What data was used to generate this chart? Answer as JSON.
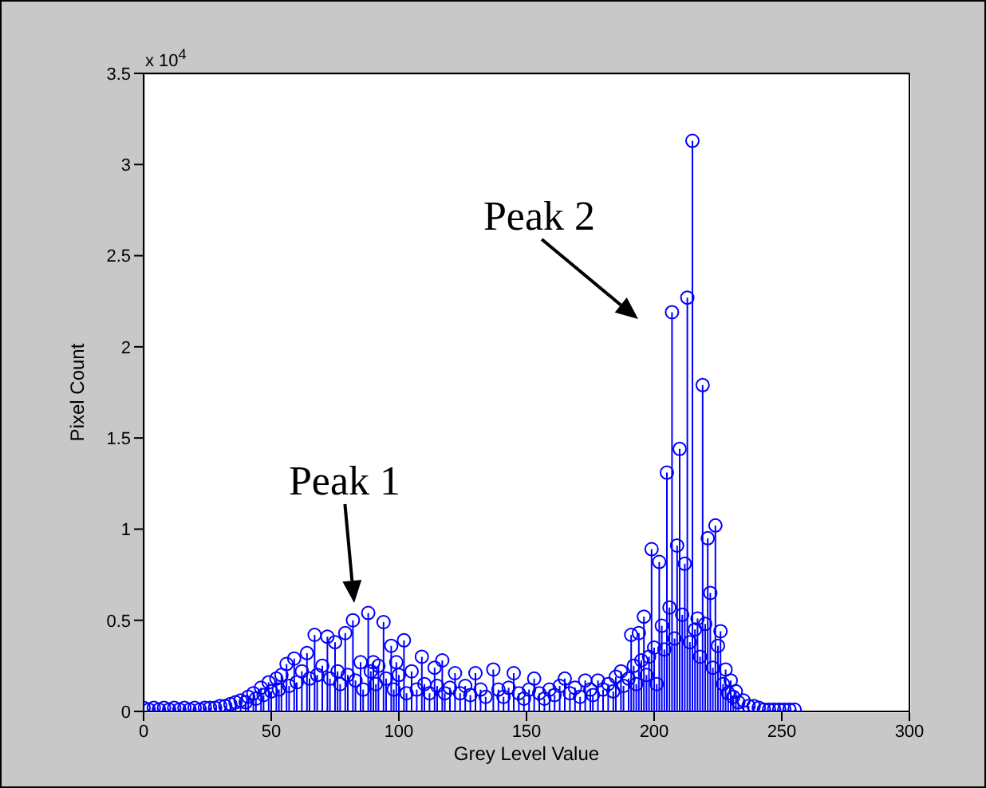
{
  "chart_data": {
    "type": "lollipop",
    "xlabel": "Grey Level Value",
    "ylabel": "Pixel Count",
    "subtitle": "x 10$^{4}$",
    "color": "#0000ff",
    "marker": "circle",
    "xlim": [
      0,
      300
    ],
    "xticks": [
      0,
      50,
      100,
      150,
      200,
      250,
      300
    ],
    "ylim": [
      0,
      3.5
    ],
    "yticks": [
      0,
      0.5,
      1,
      1.5,
      2,
      2.5,
      3,
      3.5
    ],
    "x": [
      0,
      2,
      4,
      6,
      8,
      10,
      12,
      14,
      16,
      18,
      20,
      22,
      24,
      26,
      28,
      30,
      32,
      34,
      36,
      38,
      40,
      41,
      43,
      44,
      46,
      47,
      49,
      50,
      52,
      53,
      54,
      56,
      57,
      59,
      60,
      62,
      64,
      65,
      67,
      68,
      70,
      72,
      73,
      75,
      76,
      77,
      79,
      80,
      82,
      83,
      85,
      86,
      88,
      89,
      90,
      91,
      92,
      94,
      95,
      97,
      98,
      99,
      100,
      102,
      103,
      105,
      107,
      109,
      110,
      112,
      114,
      115,
      117,
      118,
      120,
      122,
      124,
      126,
      128,
      130,
      132,
      134,
      137,
      139,
      141,
      143,
      145,
      147,
      149,
      151,
      153,
      155,
      157,
      159,
      161,
      163,
      165,
      167,
      169,
      171,
      173,
      175,
      176,
      178,
      180,
      182,
      184,
      185,
      187,
      188,
      190,
      191,
      192,
      193,
      194,
      195,
      196,
      197,
      198,
      199,
      200,
      201,
      202,
      203,
      204,
      205,
      206,
      207,
      208,
      209,
      210,
      211,
      212,
      213,
      214,
      215,
      216,
      217,
      218,
      219,
      220,
      221,
      222,
      223,
      224,
      225,
      226,
      227,
      228,
      229,
      230,
      231,
      232,
      233,
      235,
      237,
      239,
      241,
      243,
      245,
      247,
      249,
      251,
      253,
      255
    ],
    "values": [
      0.02,
      0.01,
      0.02,
      0.01,
      0.02,
      0.01,
      0.02,
      0.01,
      0.02,
      0.01,
      0.02,
      0.01,
      0.02,
      0.02,
      0.02,
      0.03,
      0.03,
      0.04,
      0.05,
      0.06,
      0.05,
      0.08,
      0.1,
      0.07,
      0.13,
      0.09,
      0.16,
      0.11,
      0.18,
      0.12,
      0.2,
      0.26,
      0.14,
      0.29,
      0.16,
      0.22,
      0.32,
      0.18,
      0.42,
      0.2,
      0.25,
      0.41,
      0.18,
      0.38,
      0.22,
      0.15,
      0.43,
      0.2,
      0.5,
      0.17,
      0.27,
      0.12,
      0.54,
      0.22,
      0.27,
      0.15,
      0.25,
      0.49,
      0.18,
      0.36,
      0.12,
      0.27,
      0.2,
      0.39,
      0.1,
      0.22,
      0.12,
      0.3,
      0.15,
      0.1,
      0.24,
      0.14,
      0.28,
      0.1,
      0.13,
      0.21,
      0.1,
      0.14,
      0.09,
      0.21,
      0.12,
      0.08,
      0.23,
      0.12,
      0.08,
      0.13,
      0.21,
      0.1,
      0.07,
      0.12,
      0.18,
      0.1,
      0.07,
      0.12,
      0.09,
      0.14,
      0.18,
      0.1,
      0.13,
      0.08,
      0.17,
      0.12,
      0.09,
      0.17,
      0.12,
      0.15,
      0.11,
      0.19,
      0.22,
      0.14,
      0.18,
      0.42,
      0.25,
      0.15,
      0.43,
      0.28,
      0.52,
      0.2,
      0.3,
      0.89,
      0.35,
      0.15,
      0.82,
      0.47,
      0.34,
      1.31,
      0.57,
      2.19,
      0.4,
      0.91,
      1.44,
      0.53,
      0.81,
      2.27,
      0.38,
      3.13,
      0.45,
      0.51,
      0.3,
      1.79,
      0.48,
      0.95,
      0.65,
      0.24,
      1.02,
      0.36,
      0.44,
      0.15,
      0.23,
      0.1,
      0.17,
      0.08,
      0.11,
      0.05,
      0.06,
      0.03,
      0.03,
      0.02,
      0.01,
      0.01,
      0.01,
      0.01,
      0.01,
      0.01,
      0.01
    ],
    "annotations": [
      "Peak 1",
      "Peak 2"
    ]
  }
}
